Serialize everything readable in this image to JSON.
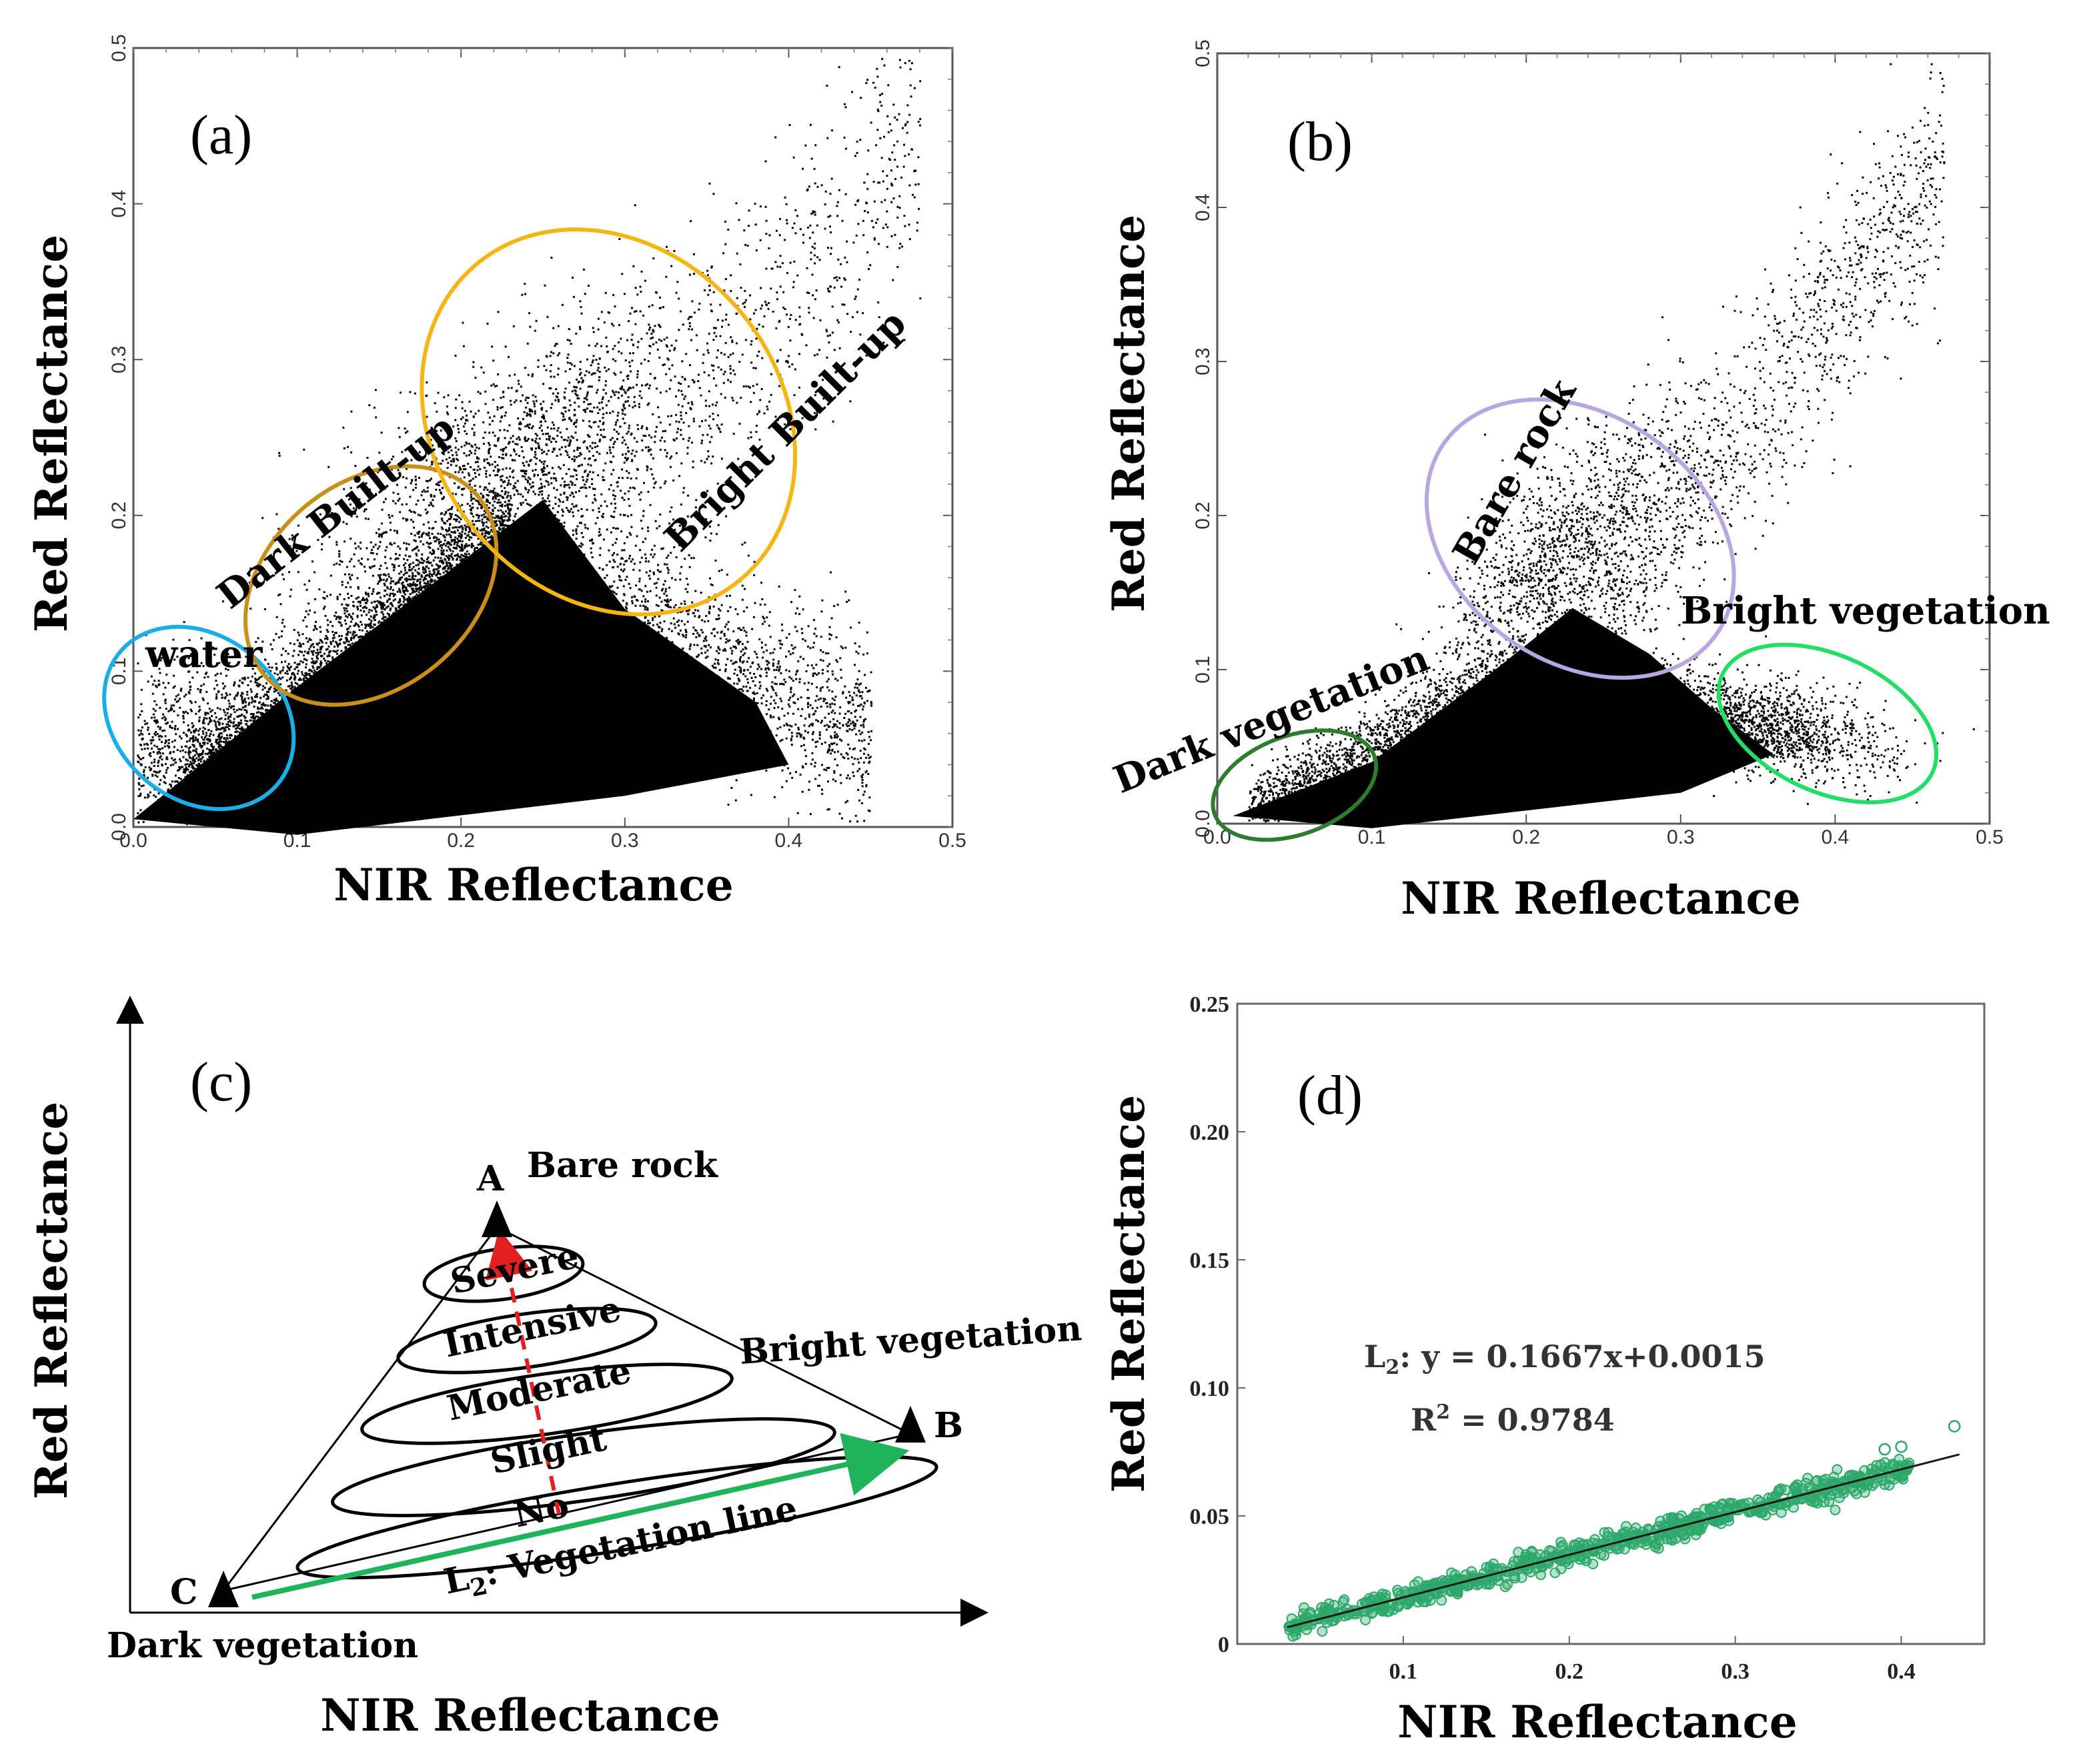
{
  "chart_data": [
    {
      "panel": "(a)",
      "type": "scatter",
      "xlabel": "NIR Reflectance",
      "ylabel": "Red Reflectance",
      "xlim": [
        0.0,
        0.5
      ],
      "ylim": [
        0.0,
        0.5
      ],
      "xticks": [
        "0.0",
        "0.1",
        "0.2",
        "0.3",
        "0.4",
        "0.5"
      ],
      "yticks": [
        "0.0",
        "0.1",
        "0.2",
        "0.3",
        "0.4",
        "0.5"
      ],
      "regions": [
        {
          "label": "water",
          "color": "#1aaee6",
          "cx": 0.04,
          "cy": 0.07,
          "rx": 0.05,
          "ry": 0.03
        },
        {
          "label": "Dark Built-up",
          "color": "#c8901a",
          "cx": 0.145,
          "cy": 0.155,
          "rx": 0.085,
          "ry": 0.03
        },
        {
          "label": "Bright Built-up",
          "color": "#f5b512",
          "cx": 0.29,
          "cy": 0.26,
          "rx": 0.105,
          "ry": 0.06
        }
      ]
    },
    {
      "panel": "(b)",
      "type": "scatter",
      "xlabel": "NIR Reflectance",
      "ylabel": "Red Reflectance",
      "xlim": [
        0.0,
        0.5
      ],
      "ylim": [
        0.0,
        0.5
      ],
      "xticks": [
        "0.0",
        "0.1",
        "0.2",
        "0.3",
        "0.4",
        "0.5"
      ],
      "yticks": [
        "0.0",
        "0.1",
        "0.2",
        "0.3",
        "0.4",
        "0.5"
      ],
      "regions": [
        {
          "label": "Dark vegetation",
          "color": "#2e7d2e",
          "cx": 0.05,
          "cy": 0.025,
          "rx": 0.055,
          "ry": 0.02
        },
        {
          "label": "Bare rock",
          "color": "#b9a6e0",
          "cx": 0.235,
          "cy": 0.185,
          "rx": 0.08,
          "ry": 0.045
        },
        {
          "label": "Bright vegetation",
          "color": "#22dd66",
          "cx": 0.395,
          "cy": 0.065,
          "rx": 0.075,
          "ry": 0.026
        }
      ]
    },
    {
      "panel": "(c)",
      "type": "diagram",
      "xlabel": "NIR Reflectance",
      "ylabel": "Red Reflectance",
      "vertices": [
        {
          "id": "A",
          "label": "Bare rock"
        },
        {
          "id": "B",
          "label": "Bright vegetation"
        },
        {
          "id": "C",
          "label": "Dark vegetation"
        }
      ],
      "levels": [
        "Severe",
        "Intensive",
        "Moderate",
        "Slight",
        "No"
      ],
      "line_label_prefix": "L",
      "line_label_sub": "2",
      "line_label_suffix": ": Vegetation line"
    },
    {
      "panel": "(d)",
      "type": "scatter",
      "xlabel": "NIR Reflectance",
      "ylabel": "Red Reflectance",
      "xlim": [
        0.0,
        0.45
      ],
      "ylim": [
        0.0,
        0.25
      ],
      "xticks": [
        "0.1",
        "0.2",
        "0.3",
        "0.4"
      ],
      "yticks": [
        "0",
        "0.05",
        "0.10",
        "0.15",
        "0.20",
        "0.25"
      ],
      "fit": {
        "slope": 0.1667,
        "intercept": 0.0015,
        "x_range": [
          0.03,
          0.435
        ]
      },
      "equation_prefix": "L",
      "equation_sub": "2",
      "equation_suffix": ": y = 0.1667x+0.0015",
      "r2_label": "R",
      "r2_sup": "2",
      "r2_suffix": " = 0.9784",
      "point_color": "#2ea86a"
    }
  ]
}
